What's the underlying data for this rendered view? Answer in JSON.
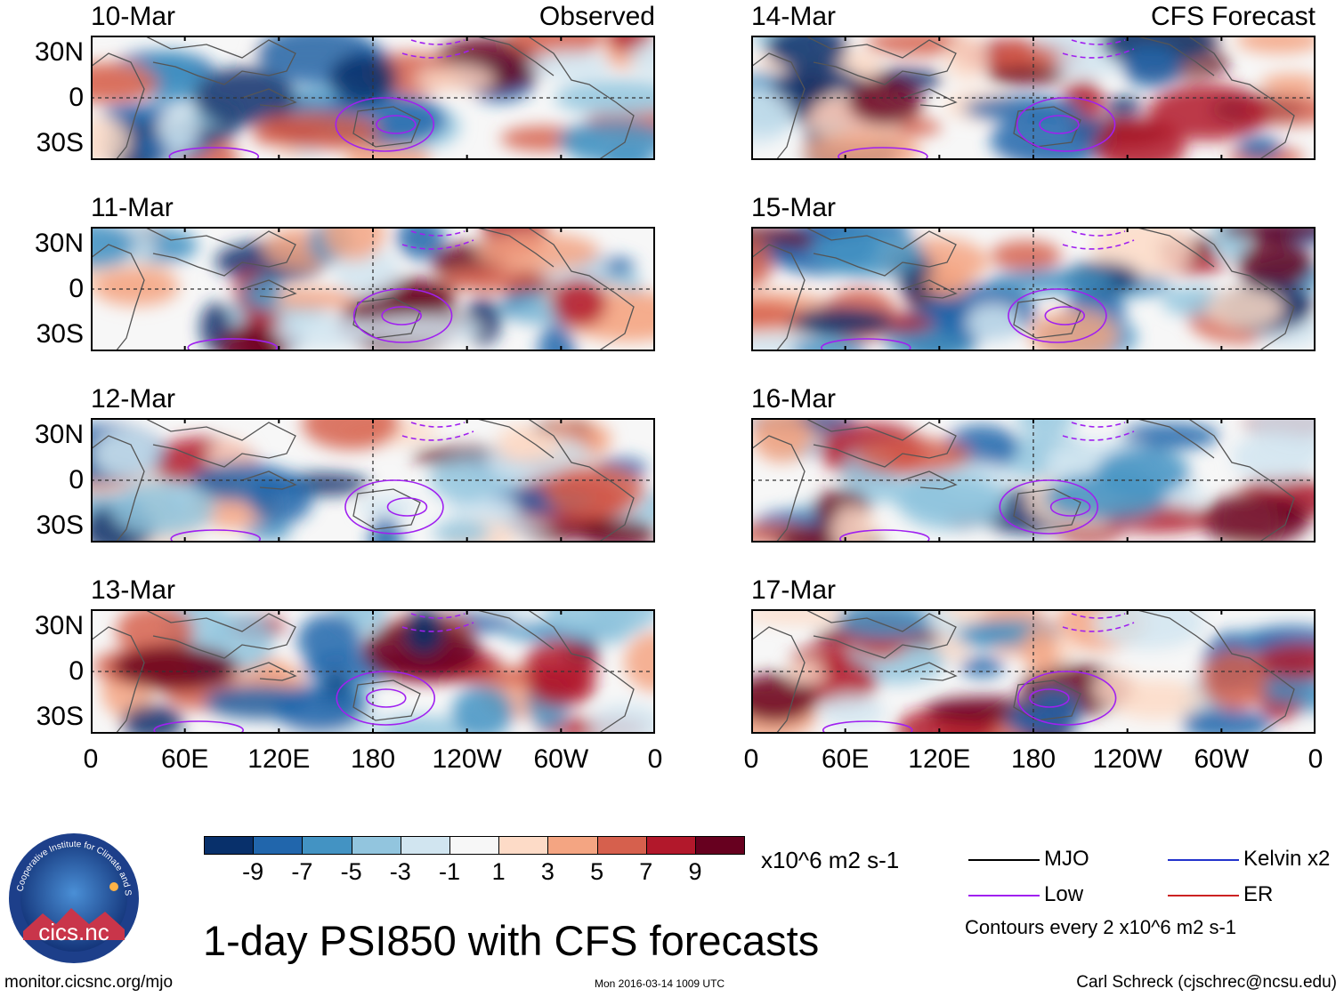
{
  "columns": [
    {
      "id": "observed",
      "corner_label": "Observed",
      "panels": [
        {
          "date": "10-Mar"
        },
        {
          "date": "11-Mar"
        },
        {
          "date": "12-Mar"
        },
        {
          "date": "13-Mar"
        }
      ]
    },
    {
      "id": "forecast",
      "corner_label": "CFS Forecast",
      "panels": [
        {
          "date": "14-Mar"
        },
        {
          "date": "15-Mar"
        },
        {
          "date": "16-Mar"
        },
        {
          "date": "17-Mar"
        }
      ]
    }
  ],
  "axes": {
    "lat_labels": [
      "30N",
      "0",
      "30S"
    ],
    "lon_labels": [
      "0",
      "60E",
      "120E",
      "180",
      "120W",
      "60W",
      "0"
    ]
  },
  "colorbar": {
    "colors": [
      "#08306b",
      "#2166ac",
      "#4393c3",
      "#92c5de",
      "#d1e5f0",
      "#f7f7f7",
      "#fddbc7",
      "#f4a582",
      "#d6604d",
      "#b2182b",
      "#67001f"
    ],
    "labels": [
      "-9",
      "-7",
      "-5",
      "-3",
      "-1",
      "1",
      "3",
      "5",
      "7",
      "9"
    ],
    "units": "x10^6 m2 s-1"
  },
  "title": "1-day PSI850 with CFS forecasts",
  "legend": {
    "items": [
      {
        "label": "MJO",
        "color": "#000000"
      },
      {
        "label": "Kelvin x2",
        "color": "#2233cc"
      },
      {
        "label": "Low",
        "color": "#a020f0"
      },
      {
        "label": "ER",
        "color": "#cc2222"
      }
    ],
    "contours_note": "Contours every 2 x10^6 m2 s-1"
  },
  "logo": {
    "name": "cics.nc",
    "ring_text": "Cooperative Institute for Climate and Satellites"
  },
  "footer": {
    "url": "monitor.cicsnc.org/mjo",
    "timestamp": "Mon 2016-03-14 1009 UTC",
    "author": "Carl Schreck (cjschrec@ncsu.edu)"
  }
}
